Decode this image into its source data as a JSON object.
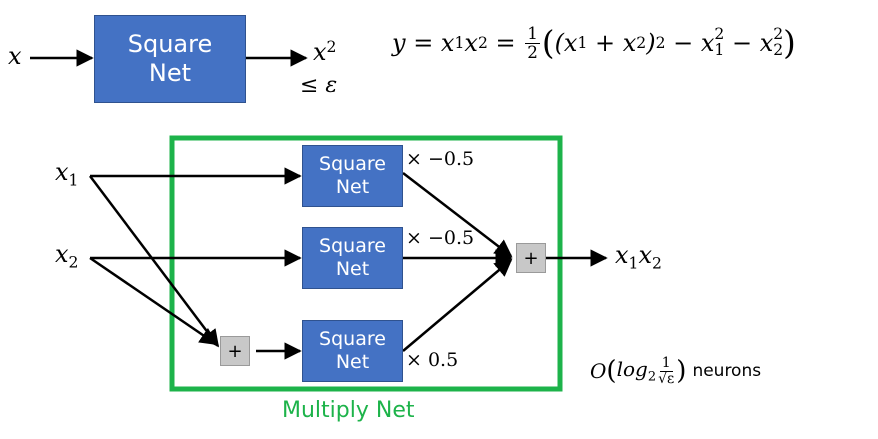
{
  "top_row": {
    "input_label": "x",
    "box_line1": "Square",
    "box_line2": "Net",
    "output_label": "x",
    "output_power": "2",
    "error_bound": "≤ ε"
  },
  "equation": {
    "lhs": "y = x",
    "sub1": "1",
    "mid": "x",
    "sub2": "2",
    "eq": " = ",
    "frac_num": "1",
    "frac_den": "2",
    "paren_open": "(",
    "t1": "(x",
    "t1_sub1": "1",
    "t1_plus": " + x",
    "t1_sub2": "2",
    "t1_close": ")",
    "t1_pow": "2",
    "minus1": " − x",
    "m1_sub": "1",
    "m1_pow": "2",
    "minus2": " − x",
    "m2_sub": "2",
    "m2_pow": "2",
    "paren_close": ")"
  },
  "multiply_net": {
    "caption": "Multiply Net",
    "border_color": "#1db34a",
    "input1": {
      "base": "x",
      "sub": "1"
    },
    "input2": {
      "base": "x",
      "sub": "2"
    },
    "boxes": [
      {
        "line1": "Square",
        "line2": "Net",
        "factor": "× −0.5"
      },
      {
        "line1": "Square",
        "line2": "Net",
        "factor": "× −0.5"
      },
      {
        "line1": "Square",
        "line2": "Net",
        "factor": "× 0.5"
      }
    ],
    "plus_symbol": "+",
    "output": {
      "base1": "x",
      "sub1": "1",
      "base2": "x",
      "sub2": "2"
    }
  },
  "complexity": {
    "big_o": "O",
    "paren_open": "(",
    "log": "log",
    "log_sub": "2",
    "frac_num": "1",
    "frac_den": "√ε",
    "paren_close": ")",
    "suffix": "neurons"
  },
  "colors": {
    "box_fill": "#4472c4",
    "plus_fill": "#c8c8c8",
    "frame": "#1db34a"
  }
}
